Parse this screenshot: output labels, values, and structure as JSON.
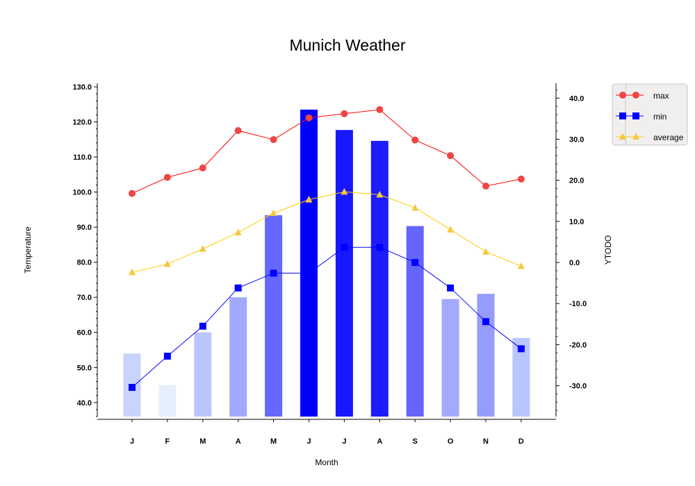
{
  "chart_data": {
    "title": "Munich Weather",
    "xlabel": "Month",
    "ylabel_left": "Temperature",
    "ylabel_right": "YTODO",
    "categories": [
      "J",
      "F",
      "M",
      "A",
      "M",
      "J",
      "J",
      "A",
      "S",
      "O",
      "N",
      "D"
    ],
    "left_axis": {
      "range": [
        36,
        131
      ],
      "ticks": [
        "40.0",
        "50.0",
        "60.0",
        "70.0",
        "80.0",
        "90.0",
        "100.0",
        "110.0",
        "120.0",
        "130.0"
      ],
      "tick_values": [
        40,
        50,
        60,
        70,
        80,
        90,
        100,
        110,
        120,
        130
      ]
    },
    "right_axis": {
      "range": [
        -37.5,
        43.6
      ],
      "ticks": [
        "-30.0",
        "-20.0",
        "-10.0",
        "0.0",
        "10.0",
        "20.0",
        "30.0",
        "40.0"
      ],
      "tick_values": [
        -30,
        -20,
        -10,
        0,
        10,
        20,
        30,
        40
      ]
    },
    "bar_series": {
      "axis": "left",
      "values": [
        54,
        45,
        60,
        70,
        93.4,
        123.5,
        117.7,
        114.6,
        90.3,
        69.5,
        71,
        58.4
      ],
      "colors": [
        "#c9d3fc",
        "#e6f0fd",
        "#bbc5fd",
        "#a2a9fd",
        "#6667fe",
        "#0000ff",
        "#1818fe",
        "#1c1cfe",
        "#6565fe",
        "#a3a9fd",
        "#969cfd",
        "#bac4fd"
      ]
    },
    "series": [
      {
        "name": "max",
        "type": "line",
        "axis": "right",
        "marker": "circle",
        "color": "#ff0000",
        "marker_color": "#f04545",
        "values": [
          16.8,
          20.7,
          23,
          32.1,
          29.9,
          35.2,
          36.2,
          37.2,
          29.8,
          26,
          18.6,
          20.3
        ]
      },
      {
        "name": "min",
        "type": "line",
        "axis": "right",
        "marker": "square",
        "color": "#0000ff",
        "marker_color": "#0000ff",
        "values": [
          -30.4,
          -22.8,
          -15.5,
          -6.2,
          -2.6,
          -2.6,
          3.7,
          3.7,
          0,
          -6.2,
          -14.4,
          -21
        ]
      },
      {
        "name": "average",
        "type": "line",
        "axis": "right",
        "marker": "triangle",
        "color": "#ffcc00",
        "marker_color": "#f4c842",
        "values": [
          -2.4,
          -0.4,
          3.3,
          7.3,
          12,
          15.3,
          17.2,
          16.5,
          13.3,
          8,
          2.6,
          -0.9
        ]
      }
    ],
    "legend": {
      "placement": "top-right",
      "entries": [
        "max",
        "min",
        "average"
      ]
    },
    "grid": false
  }
}
